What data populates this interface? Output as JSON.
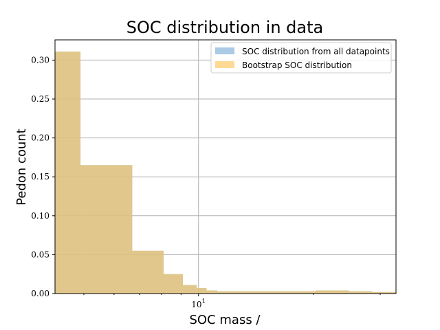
{
  "chart_data": {
    "type": "bar",
    "title": "SOC distribution in data",
    "xlabel": "SOC mass /",
    "ylabel": "Pedon count",
    "x_scale": "log",
    "xlim": [
      4.2,
      33
    ],
    "ylim": [
      0,
      0.326
    ],
    "grid": true,
    "legend_position": "top-right",
    "y_ticks": [
      0.0,
      0.05,
      0.1,
      0.15,
      0.2,
      0.25,
      0.3
    ],
    "y_tick_labels": [
      "0.00",
      "0.05",
      "0.10",
      "0.15",
      "0.20",
      "0.25",
      "0.30"
    ],
    "x_tick_major": [
      10
    ],
    "x_tick_label_base": "10",
    "x_tick_label_exp": "1",
    "x_tick_minor": [
      5,
      6,
      7,
      8,
      9,
      20,
      30
    ],
    "series": [
      {
        "name": "SOC distribution from all datapoints",
        "color": "#8fb8dc",
        "opacity": 0.75,
        "bin_edges": [
          4.2,
          4.9,
          6.7,
          8.1,
          9.1,
          9.9,
          10.5,
          11.2,
          12.2,
          13.5,
          15.2,
          17.4,
          20.3,
          24.8,
          28.5,
          33.0
        ],
        "values": [
          0.311,
          0.165,
          0.055,
          0.025,
          0.011,
          0.007,
          0.004,
          0.003,
          0.003,
          0.003,
          0.003,
          0.003,
          0.004,
          0.003,
          0.002
        ]
      },
      {
        "name": "Bootstrap SOC distribution",
        "color": "#fdc55a",
        "opacity": 0.65,
        "bin_edges": [
          4.2,
          4.9,
          6.7,
          8.1,
          9.1,
          9.9,
          10.5,
          11.2,
          12.2,
          13.5,
          15.2,
          17.4,
          20.3,
          24.8,
          28.5,
          33.0
        ],
        "values": [
          0.311,
          0.165,
          0.055,
          0.025,
          0.011,
          0.007,
          0.004,
          0.003,
          0.003,
          0.003,
          0.003,
          0.003,
          0.004,
          0.003,
          0.002
        ]
      }
    ]
  }
}
